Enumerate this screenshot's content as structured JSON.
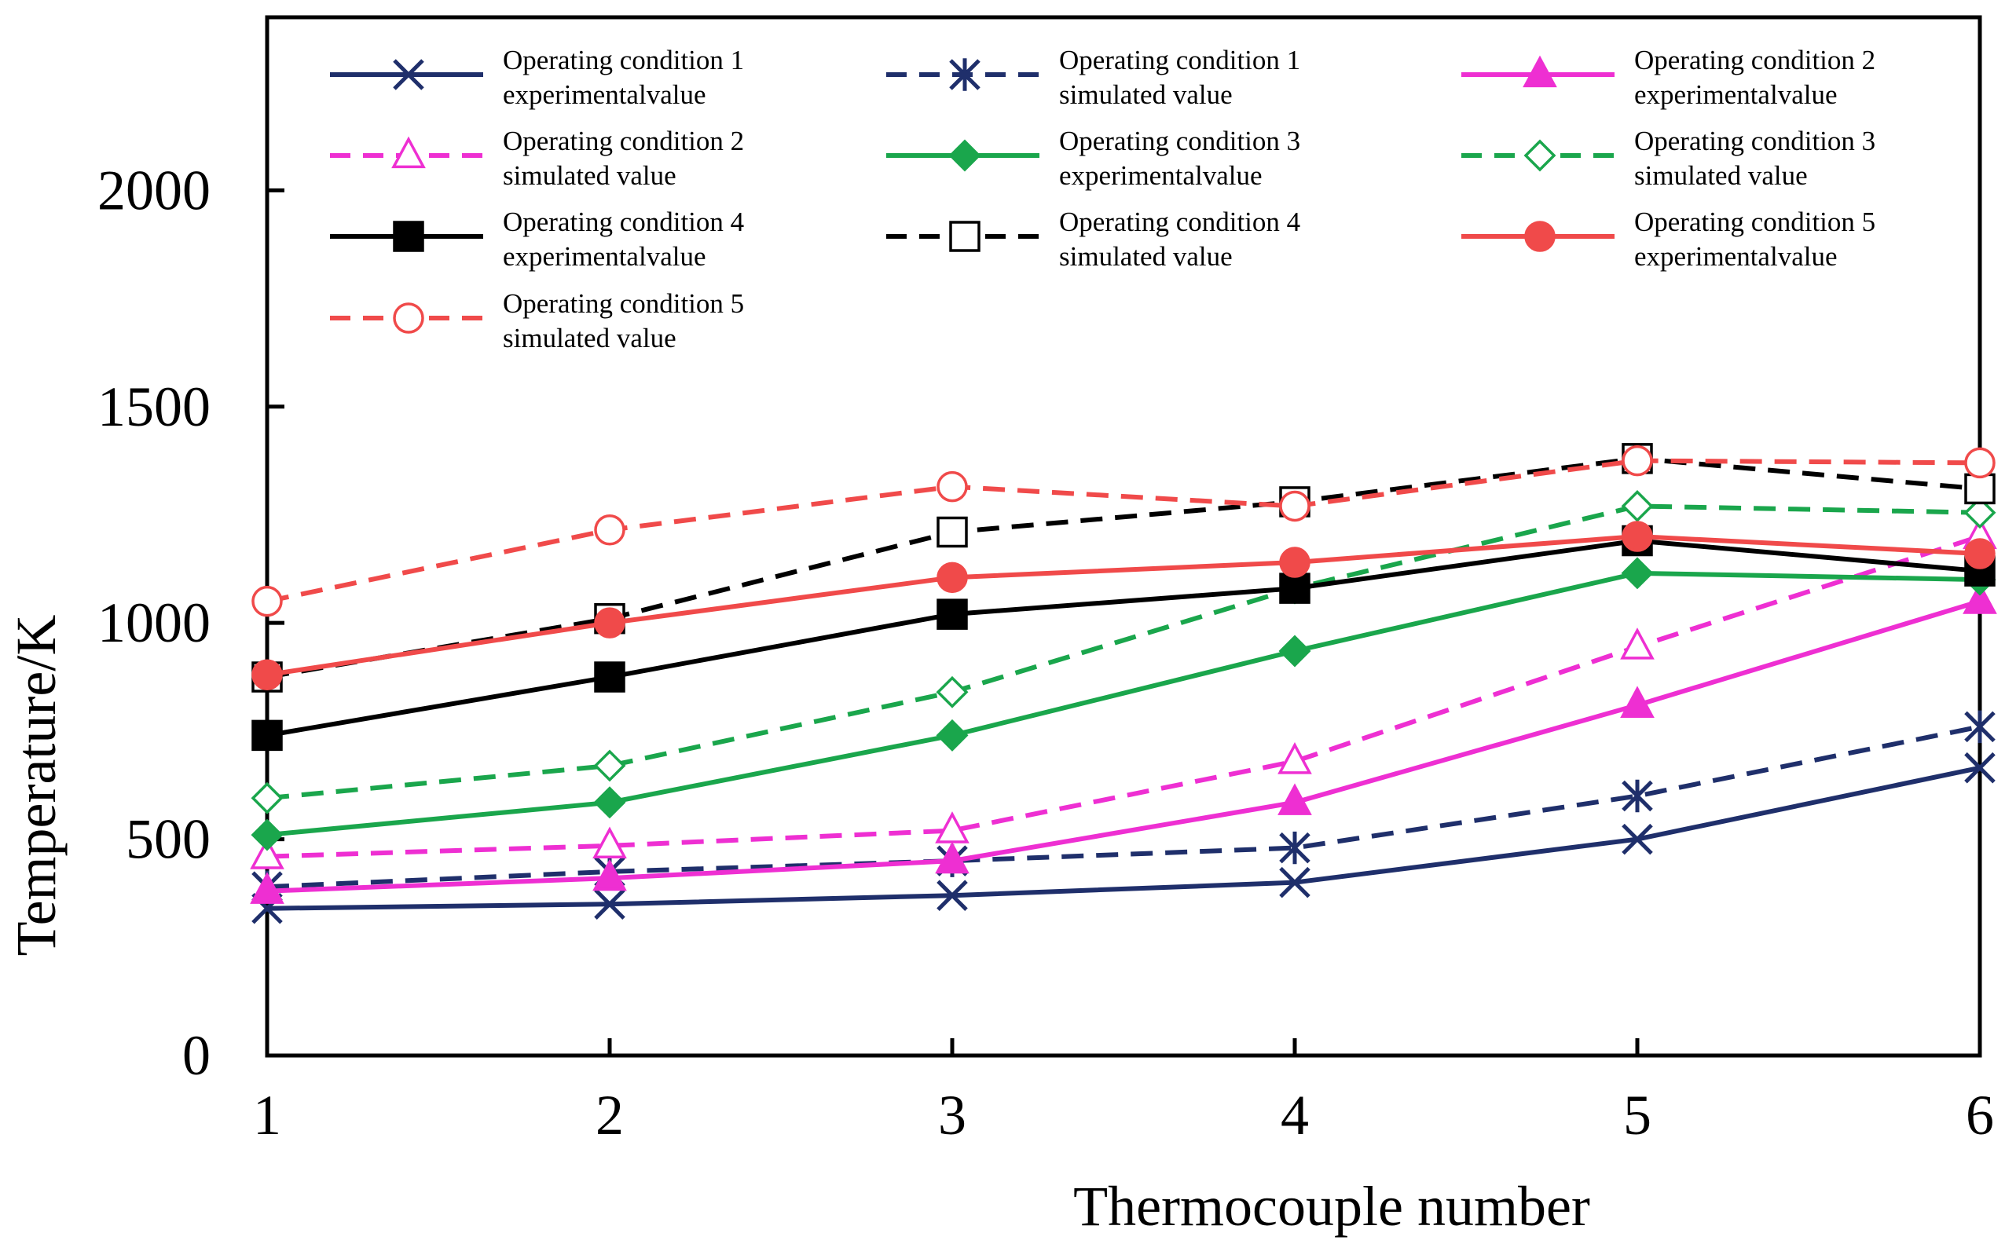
{
  "chart_data": {
    "type": "line",
    "xlabel": "Thermocouple number",
    "ylabel": "Temperature/K",
    "x": [
      1,
      2,
      3,
      4,
      5,
      6
    ],
    "x_tick_labels": [
      "1",
      "2",
      "3",
      "4",
      "5",
      "6"
    ],
    "xlim": [
      1,
      6
    ],
    "ylim": [
      0,
      2400
    ],
    "y_ticks": [
      0,
      500,
      1000,
      1500,
      2000
    ],
    "y_tick_labels": [
      "0",
      "500",
      "1000",
      "1500",
      "2000"
    ],
    "grid": false,
    "legend_placement": "top",
    "series": [
      {
        "name": "Operating condition 1 experimentalvalue",
        "label_line1": "Operating  condition  1",
        "label_line2": "experimentalvalue",
        "color": "#1f2f6b",
        "dash": "solid",
        "marker": "x",
        "values": [
          340,
          350,
          370,
          400,
          500,
          665
        ]
      },
      {
        "name": "Operating condition 1 simulated value",
        "label_line1": "Operating  condition  1",
        "label_line2": "simulated value",
        "color": "#1f2f6b",
        "dash": "dashed",
        "marker": "asterisk",
        "values": [
          390,
          425,
          450,
          480,
          600,
          760
        ]
      },
      {
        "name": "Operating condition 2 experimentalvalue",
        "label_line1": "Operating  condition  2",
        "label_line2": "experimentalvalue",
        "color": "#ee2fd2",
        "dash": "solid",
        "marker": "triangle-filled",
        "values": [
          380,
          410,
          450,
          585,
          810,
          1050
        ]
      },
      {
        "name": "Operating condition 2 simulated value",
        "label_line1": "Operating  condition  2",
        "label_line2": "simulated value",
        "color": "#ee2fd2",
        "dash": "dashed",
        "marker": "triangle-open",
        "values": [
          460,
          485,
          520,
          680,
          945,
          1200
        ]
      },
      {
        "name": "Operating condition 3 experimentalvalue",
        "label_line1": "Operating  condition  3",
        "label_line2": "experimentalvalue",
        "color": "#1aa64c",
        "dash": "solid",
        "marker": "diamond-filled",
        "values": [
          510,
          585,
          740,
          935,
          1115,
          1100
        ]
      },
      {
        "name": "Operating condition 3 simulated value",
        "label_line1": "Operating  condition  3",
        "label_line2": "simulated value",
        "color": "#1aa64c",
        "dash": "dashed",
        "marker": "diamond-open",
        "values": [
          595,
          670,
          840,
          1080,
          1270,
          1255
        ]
      },
      {
        "name": "Operating condition 4 experimentalvalue",
        "label_line1": "Operating  condition  4",
        "label_line2": "experimentalvalue",
        "color": "#000000",
        "dash": "solid",
        "marker": "square-filled",
        "values": [
          740,
          875,
          1020,
          1080,
          1190,
          1120
        ]
      },
      {
        "name": "Operating condition 4 simulated value",
        "label_line1": "Operating  condition  4",
        "label_line2": "simulated value",
        "color": "#000000",
        "dash": "dashed",
        "marker": "square-open",
        "values": [
          875,
          1010,
          1210,
          1280,
          1380,
          1310
        ]
      },
      {
        "name": "Operating condition 5 experimentalvalue",
        "label_line1": "Operating  condition  5",
        "label_line2": "experimentalvalue",
        "color": "#f04a4a",
        "dash": "solid",
        "marker": "circle-filled",
        "values": [
          880,
          1000,
          1105,
          1140,
          1200,
          1160
        ]
      },
      {
        "name": "Operating condition 5 simulated value",
        "label_line1": "Operating  condition  5",
        "label_line2": "simulated value",
        "color": "#f04a4a",
        "dash": "dashed",
        "marker": "circle-open",
        "values": [
          1050,
          1215,
          1315,
          1270,
          1375,
          1370
        ]
      }
    ]
  }
}
